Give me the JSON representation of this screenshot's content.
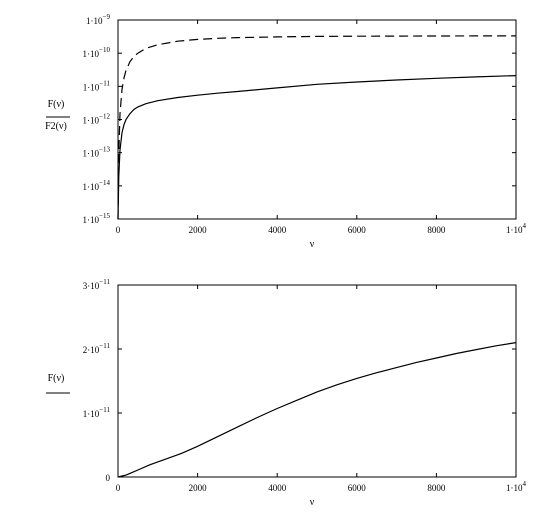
{
  "chart_data": [
    {
      "type": "line",
      "yscale": "log",
      "xlabel": "ν",
      "ylabel_lines": [
        "F(ν)",
        "F2(ν)"
      ],
      "xlim": [
        0,
        10000
      ],
      "ylim": [
        1e-15,
        1e-09
      ],
      "x_ticks": [
        {
          "value": 0,
          "label": "0"
        },
        {
          "value": 2000,
          "label": "2000"
        },
        {
          "value": 4000,
          "label": "4000"
        },
        {
          "value": 6000,
          "label": "6000"
        },
        {
          "value": 8000,
          "label": "8000"
        },
        {
          "value": 10000,
          "label": "1·10",
          "sup": "4"
        }
      ],
      "y_ticks": [
        {
          "value": 1e-09,
          "label": "1·10",
          "sup": "−9"
        },
        {
          "value": 1e-10,
          "label": "1·10",
          "sup": "−10"
        },
        {
          "value": 1e-11,
          "label": "1·10",
          "sup": "−11"
        },
        {
          "value": 1e-12,
          "label": "1·10",
          "sup": "−12"
        },
        {
          "value": 1e-13,
          "label": "1·10",
          "sup": "−13"
        },
        {
          "value": 1e-14,
          "label": "1·10",
          "sup": "−14"
        },
        {
          "value": 1e-15,
          "label": "1·10",
          "sup": "−15"
        }
      ],
      "series": [
        {
          "style": "solid",
          "x": [
            0,
            20,
            50,
            100,
            150,
            200,
            300,
            400,
            500,
            700,
            1000,
            1500,
            2000,
            2500,
            3000,
            4000,
            5000,
            6000,
            7000,
            8000,
            9000,
            10000
          ],
          "y": [
            1e-15,
            2e-14,
            1.2e-13,
            4e-13,
            7e-13,
            1e-12,
            1.5e-12,
            2e-12,
            2.4e-12,
            3e-12,
            3.7e-12,
            4.6e-12,
            5.4e-12,
            6.2e-12,
            7e-12,
            9e-12,
            1.15e-11,
            1.35e-11,
            1.55e-11,
            1.75e-11,
            1.92e-11,
            2.1e-11
          ]
        },
        {
          "style": "dashed",
          "x": [
            0,
            20,
            50,
            100,
            150,
            200,
            300,
            400,
            500,
            700,
            1000,
            1500,
            2000,
            2500,
            3000,
            4000,
            5000,
            6000,
            7000,
            8000,
            9000,
            10000
          ],
          "y": [
            1e-15,
            1e-13,
            1.5e-12,
            8e-12,
            1.8e-11,
            3e-11,
            5.5e-11,
            8e-11,
            1e-10,
            1.4e-10,
            1.8e-10,
            2.3e-10,
            2.6e-10,
            2.8e-10,
            2.95e-10,
            3.1e-10,
            3.2e-10,
            3.25e-10,
            3.28e-10,
            3.3e-10,
            3.31e-10,
            3.32e-10
          ]
        }
      ]
    },
    {
      "type": "line",
      "xlabel": "ν",
      "ylabel_lines": [
        "F(ν)"
      ],
      "xlim": [
        0,
        10000
      ],
      "ylim": [
        0,
        3e-11
      ],
      "x_ticks": [
        {
          "value": 0,
          "label": "0"
        },
        {
          "value": 2000,
          "label": "2000"
        },
        {
          "value": 4000,
          "label": "4000"
        },
        {
          "value": 6000,
          "label": "6000"
        },
        {
          "value": 8000,
          "label": "8000"
        },
        {
          "value": 10000,
          "label": "1·10",
          "sup": "4"
        }
      ],
      "y_ticks": [
        {
          "value": 0,
          "label": "0"
        },
        {
          "value": 1e-11,
          "label": "1·10",
          "sup": "−11"
        },
        {
          "value": 2e-11,
          "label": "2·10",
          "sup": "−11"
        },
        {
          "value": 3e-11,
          "label": "3·10",
          "sup": "−11"
        }
      ],
      "series": [
        {
          "style": "solid",
          "x": [
            0,
            200,
            500,
            800,
            1200,
            1600,
            2000,
            2500,
            3000,
            3500,
            4000,
            4500,
            5000,
            5500,
            6000,
            6500,
            7000,
            7500,
            8000,
            8500,
            9000,
            9500,
            10000
          ],
          "y": [
            0,
            3e-13,
            1.1e-12,
            1.9e-12,
            2.8e-12,
            3.7e-12,
            4.8e-12,
            6.3e-12,
            7.8e-12,
            9.3e-12,
            1.07e-11,
            1.2e-11,
            1.33e-11,
            1.44e-11,
            1.54e-11,
            1.63e-11,
            1.71e-11,
            1.79e-11,
            1.86e-11,
            1.93e-11,
            1.99e-11,
            2.05e-11,
            2.1e-11
          ]
        }
      ]
    }
  ]
}
